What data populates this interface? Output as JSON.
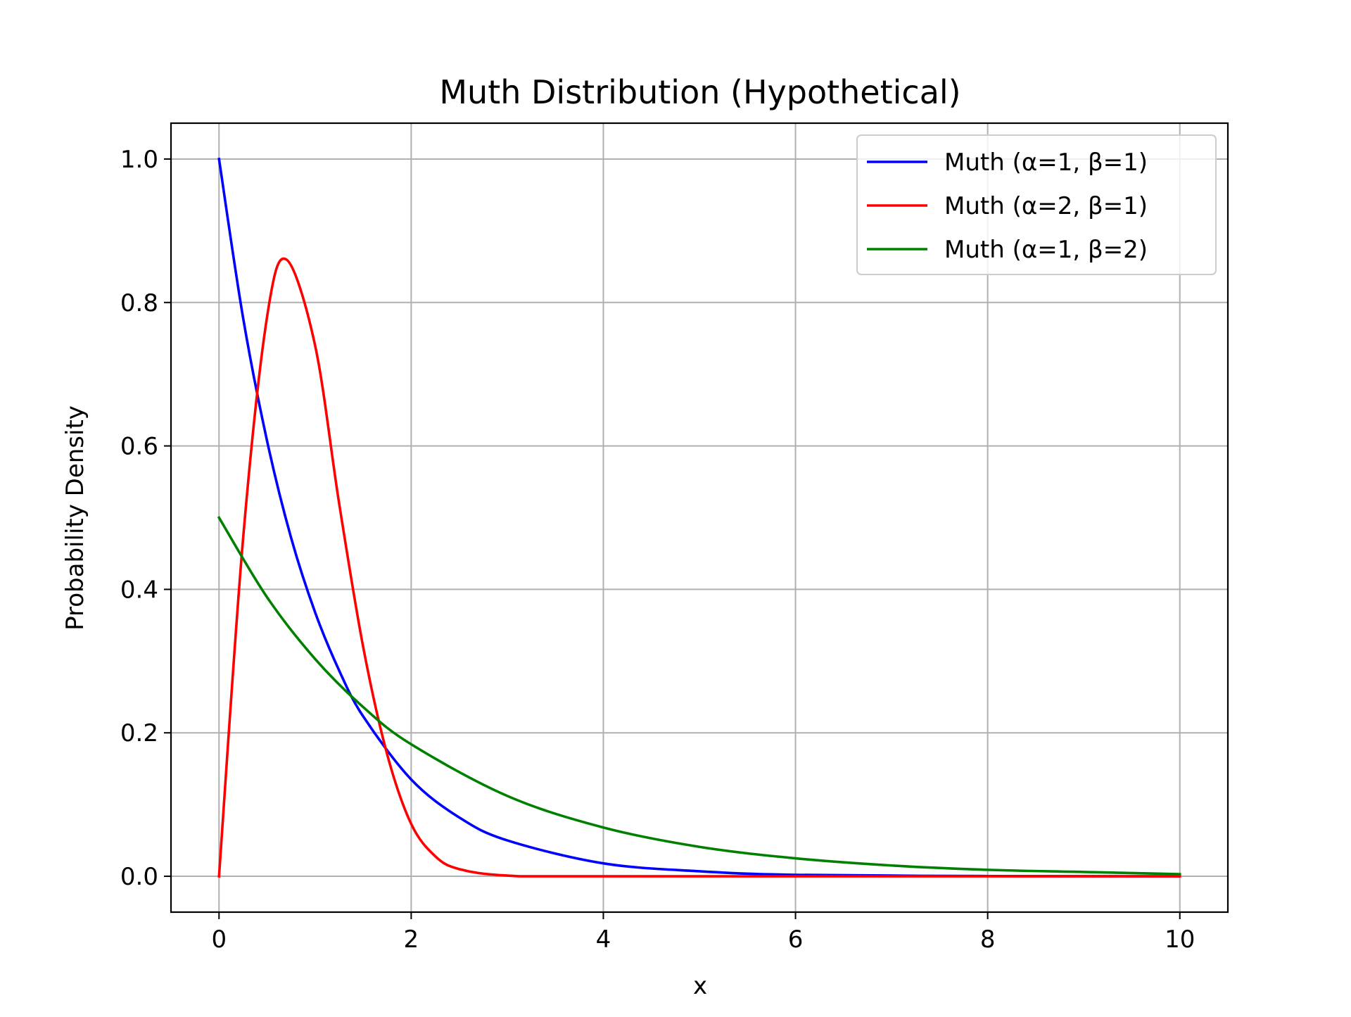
{
  "chart_data": {
    "type": "line",
    "title": "Muth Distribution (Hypothetical)",
    "xlabel": "x",
    "ylabel": "Probability Density",
    "xlim": [
      -0.5,
      10.5
    ],
    "ylim": [
      -0.05,
      1.05
    ],
    "xticks": [
      0,
      2,
      4,
      6,
      8,
      10
    ],
    "yticks": [
      0.0,
      0.2,
      0.4,
      0.6,
      0.8,
      1.0
    ],
    "xtick_labels": [
      "0",
      "2",
      "4",
      "6",
      "8",
      "10"
    ],
    "ytick_labels": [
      "0.0",
      "0.2",
      "0.4",
      "0.6",
      "0.8",
      "1.0"
    ],
    "grid": true,
    "legend_position": "top-right",
    "series": [
      {
        "name": "Muth (α=1, β=1)",
        "color": "#0000ff",
        "x": [
          0,
          0.25,
          0.5,
          0.75,
          1,
          1.25,
          1.5,
          2,
          2.5,
          3,
          4,
          5,
          6,
          8,
          10
        ],
        "y": [
          1.0,
          0.779,
          0.607,
          0.472,
          0.368,
          0.287,
          0.223,
          0.135,
          0.082,
          0.05,
          0.018,
          0.007,
          0.002,
          0.0003,
          0.0
        ]
      },
      {
        "name": "Muth (α=2, β=1)",
        "color": "#ff0000",
        "x": [
          0,
          0.25,
          0.5,
          0.7,
          1,
          1.25,
          1.5,
          1.75,
          2,
          2.25,
          2.5,
          3,
          4,
          10
        ],
        "y": [
          0.0,
          0.47,
          0.78,
          0.86,
          0.74,
          0.52,
          0.32,
          0.17,
          0.073,
          0.028,
          0.01,
          0.001,
          0.0,
          0.0
        ]
      },
      {
        "name": "Muth (α=1, β=2)",
        "color": "#008000",
        "x": [
          0,
          0.5,
          1,
          1.5,
          2,
          3,
          4,
          5,
          6,
          7,
          8,
          9,
          10
        ],
        "y": [
          0.5,
          0.389,
          0.303,
          0.236,
          0.184,
          0.112,
          0.068,
          0.041,
          0.025,
          0.015,
          0.009,
          0.006,
          0.003
        ]
      }
    ]
  }
}
